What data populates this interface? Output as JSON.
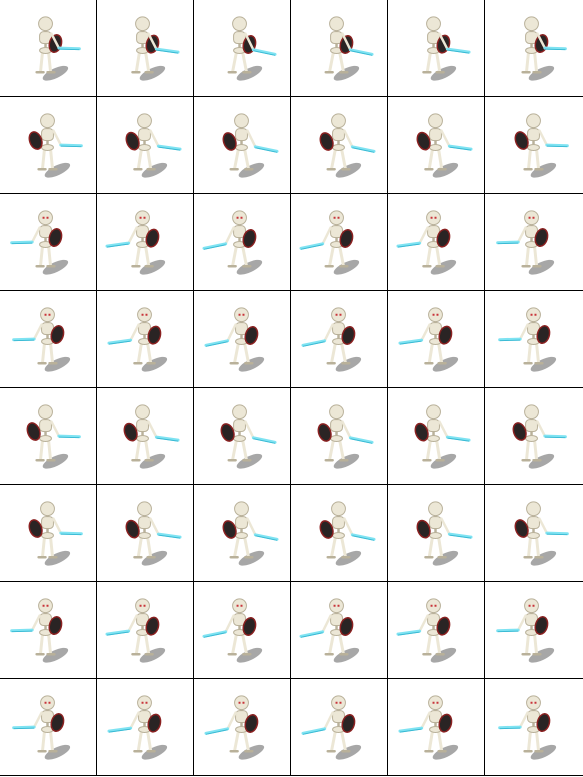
{
  "sheet": {
    "rows": 8,
    "columns": 6,
    "grid_color": "#000000",
    "background": "#ffffff",
    "sprite": "skeleton-warrior",
    "palette": {
      "bone": "#ece7d6",
      "bone_shade": "#b9b19a",
      "blade": "#7fe3f2",
      "blade_edge": "#39b9d3",
      "shield": "#2a2424",
      "shield_trim": "#8a2020",
      "eye": "#c8343a",
      "shadow": "#8a8a8a"
    },
    "animations": [
      {
        "row": 1,
        "facing": "north",
        "frames": 6,
        "shield_side": "right",
        "sword_side": "right"
      },
      {
        "row": 2,
        "facing": "north-west",
        "frames": 6,
        "shield_side": "left",
        "sword_side": "right"
      },
      {
        "row": 3,
        "facing": "south-west",
        "frames": 6,
        "shield_side": "right",
        "sword_side": "left"
      },
      {
        "row": 4,
        "facing": "west",
        "frames": 6,
        "shield_side": "right",
        "sword_side": "left"
      },
      {
        "row": 5,
        "facing": "north-west",
        "frames": 6,
        "shield_side": "left",
        "sword_side": "right"
      },
      {
        "row": 6,
        "facing": "north-east",
        "frames": 6,
        "shield_side": "left",
        "sword_side": "right"
      },
      {
        "row": 7,
        "facing": "south",
        "frames": 6,
        "shield_side": "right",
        "sword_side": "left"
      },
      {
        "row": 8,
        "facing": "south-west",
        "frames": 6,
        "shield_side": "right",
        "sword_side": "left"
      }
    ]
  }
}
